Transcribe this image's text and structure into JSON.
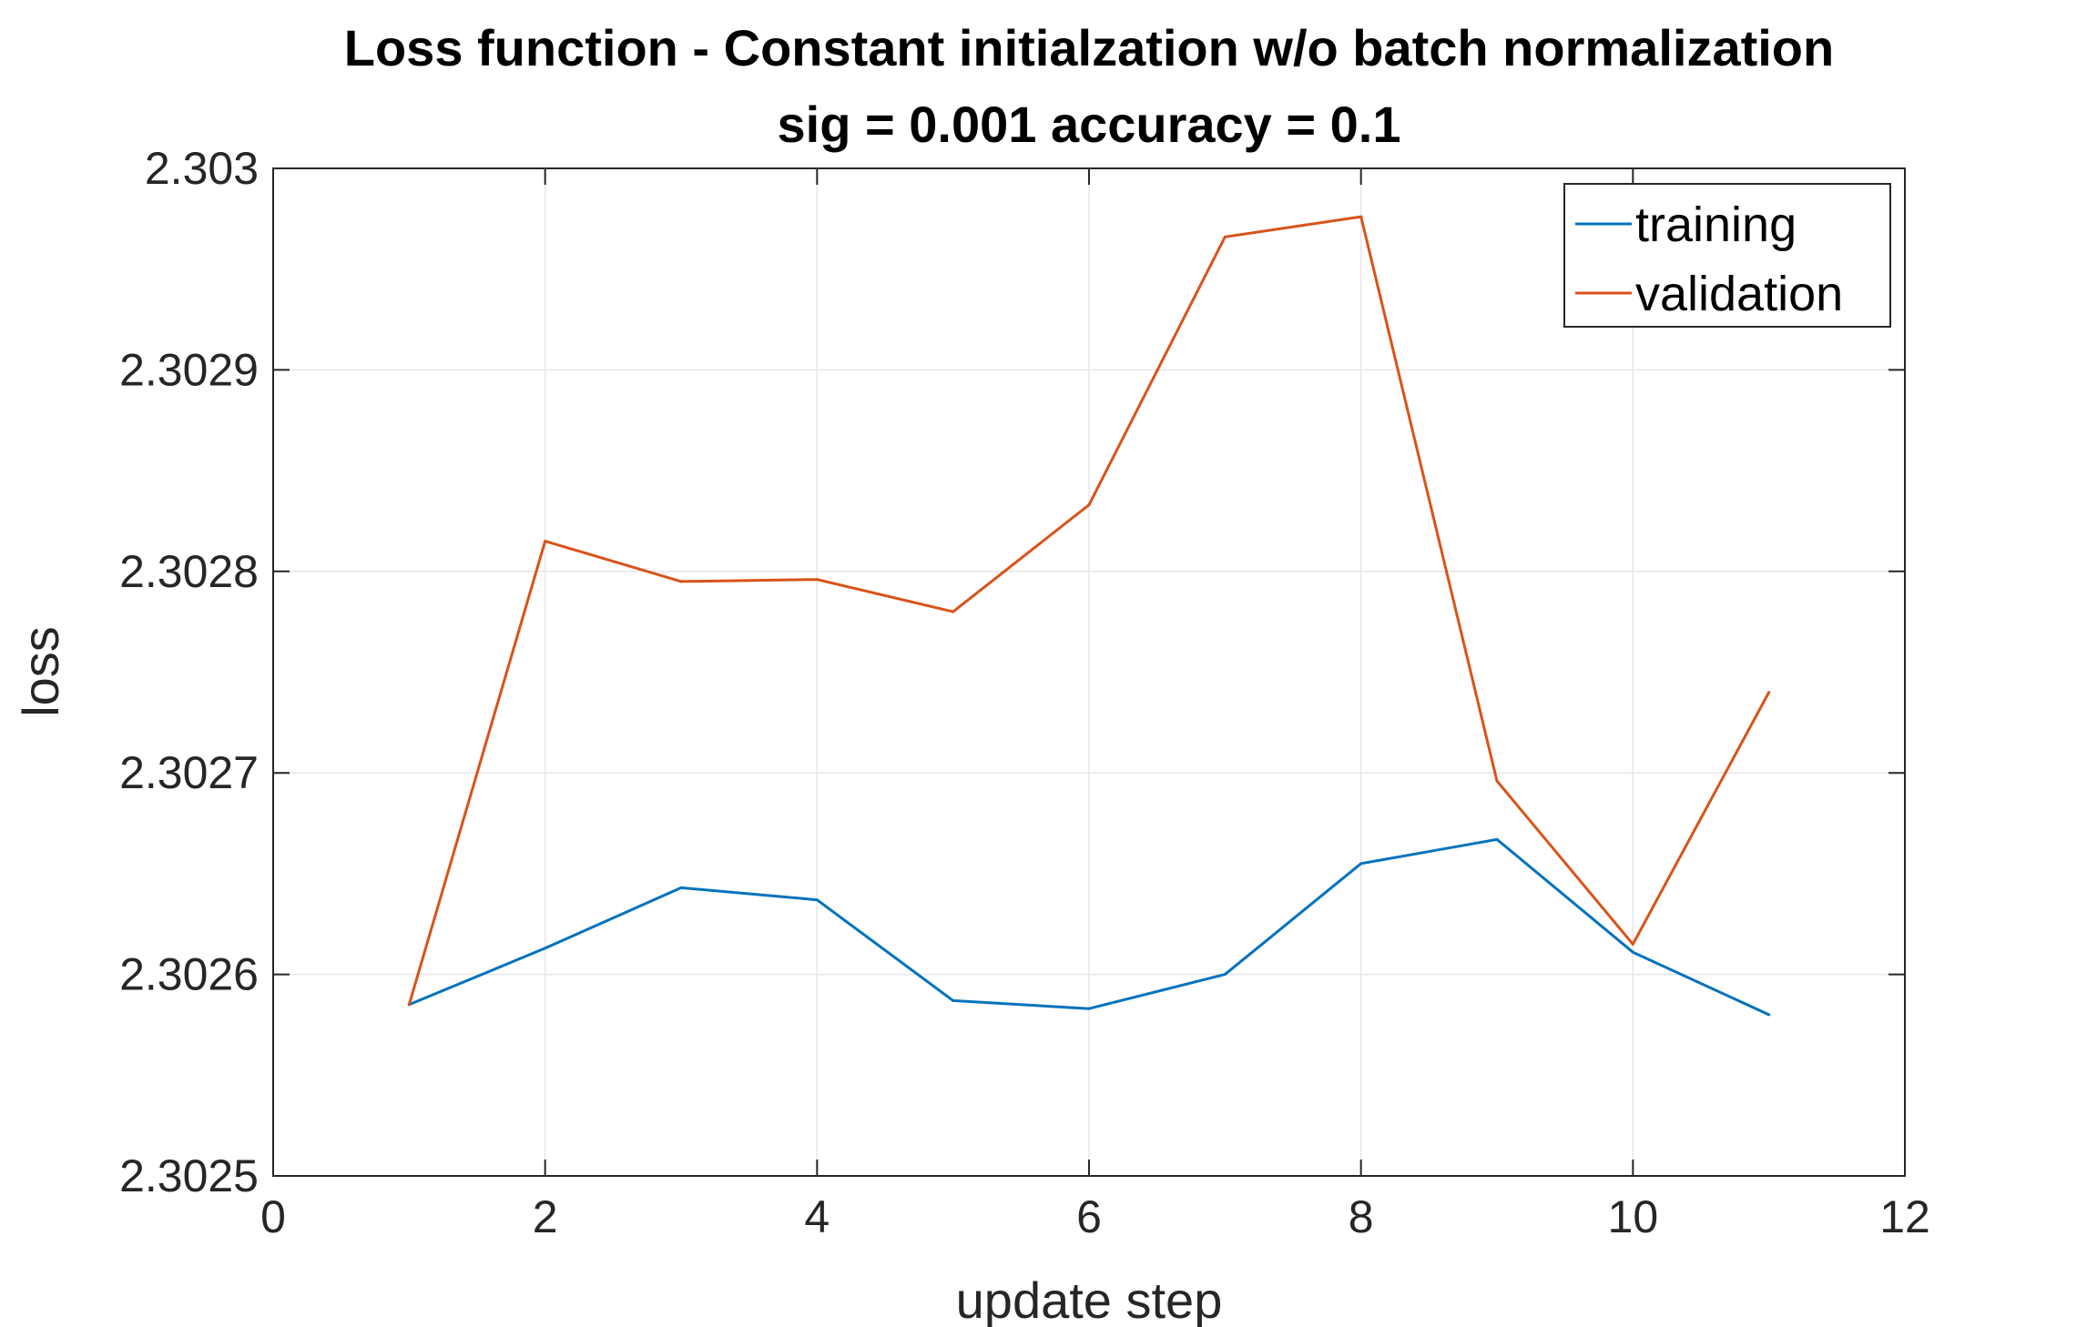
{
  "chart_data": {
    "type": "line",
    "title": "Loss function - Constant initialzation w/o batch normalization",
    "subtitle": "sig = 0.001 accuracy = 0.1",
    "xlabel": "update step",
    "ylabel": "loss",
    "xlim": [
      0,
      12
    ],
    "ylim": [
      2.3025,
      2.303
    ],
    "xticks": [
      0,
      2,
      4,
      6,
      8,
      10,
      12
    ],
    "xtick_labels": [
      "0",
      "2",
      "4",
      "6",
      "8",
      "10",
      "12"
    ],
    "yticks": [
      2.3025,
      2.3026,
      2.3027,
      2.3028,
      2.3029,
      2.303
    ],
    "ytick_labels": [
      "2.3025",
      "2.3026",
      "2.3027",
      "2.3028",
      "2.3029",
      "2.303"
    ],
    "grid": true,
    "legend_position": "top-right",
    "x": [
      1,
      2,
      3,
      4,
      5,
      6,
      7,
      8,
      9,
      10,
      11
    ],
    "series": [
      {
        "name": "training",
        "color": "#0072BD",
        "values": [
          2.302585,
          2.302613,
          2.302643,
          2.302637,
          2.302587,
          2.302583,
          2.3026,
          2.302655,
          2.302667,
          2.302611,
          2.30258
        ]
      },
      {
        "name": "validation",
        "color": "#D95319",
        "values": [
          2.302585,
          2.302815,
          2.302795,
          2.302796,
          2.30278,
          2.302833,
          2.302966,
          2.302976,
          2.302696,
          2.302615,
          2.30274
        ]
      }
    ]
  }
}
